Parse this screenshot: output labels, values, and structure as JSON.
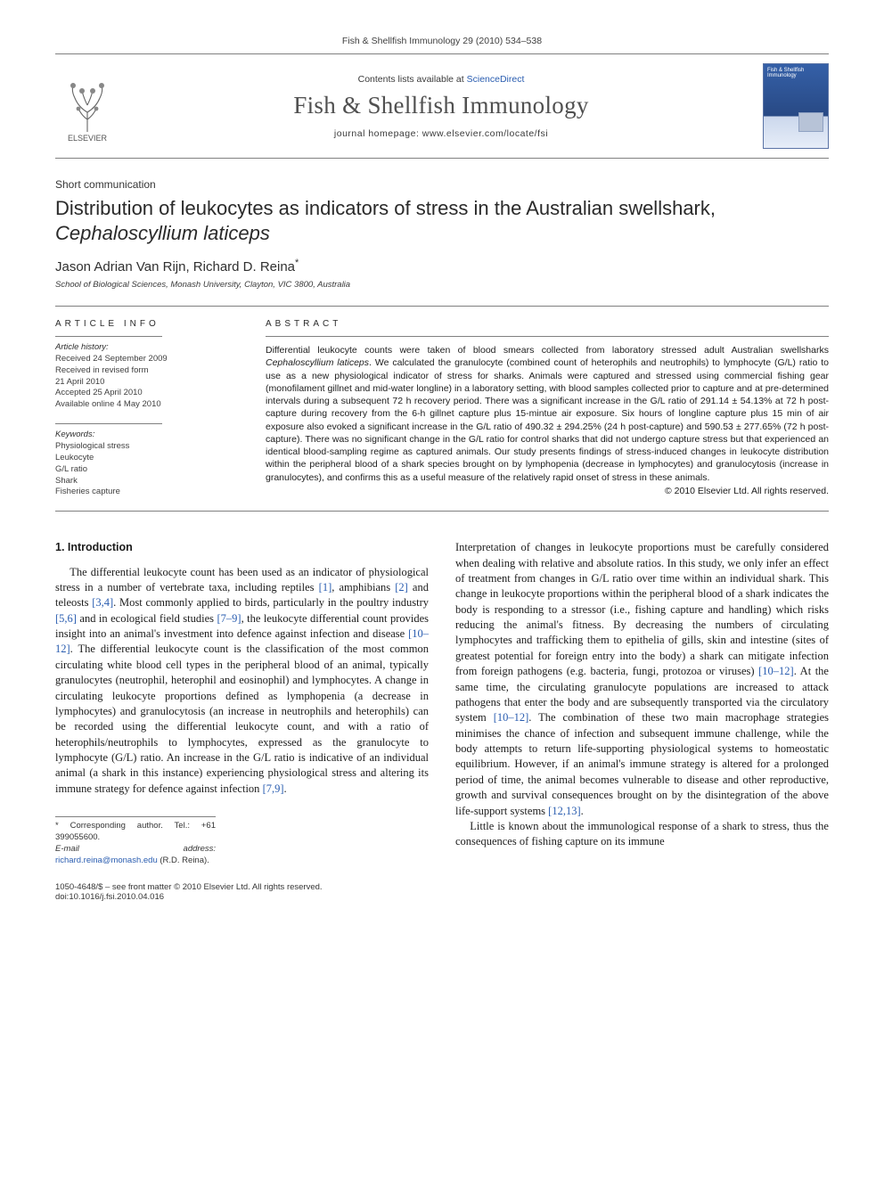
{
  "header": {
    "citation": "Fish & Shellfish Immunology 29 (2010) 534–538",
    "contents_prefix": "Contents lists available at",
    "contents_link": "ScienceDirect",
    "journal_title": "Fish & Shellfish Immunology",
    "homepage_prefix": "journal homepage:",
    "homepage_url": "www.elsevier.com/locate/fsi",
    "publisher_logo_label": "ELSEVIER",
    "cover_label": "Fish & Shellfish Immunology"
  },
  "article": {
    "type": "Short communication",
    "title_main": "Distribution of leukocytes as indicators of stress in the Australian swellshark, ",
    "title_species": "Cephaloscyllium laticeps",
    "authors": "Jason Adrian Van Rijn, Richard D. Reina",
    "corr_marker": "*",
    "affiliation": "School of Biological Sciences, Monash University, Clayton, VIC 3800, Australia"
  },
  "article_info": {
    "heading": "ARTICLE INFO",
    "history_head": "Article history:",
    "history": [
      "Received 24 September 2009",
      "Received in revised form",
      "21 April 2010",
      "Accepted 25 April 2010",
      "Available online 4 May 2010"
    ],
    "keywords_head": "Keywords:",
    "keywords": [
      "Physiological stress",
      "Leukocyte",
      "G/L ratio",
      "Shark",
      "Fisheries capture"
    ]
  },
  "abstract": {
    "heading": "ABSTRACT",
    "body": "Differential leukocyte counts were taken of blood smears collected from laboratory stressed adult Australian swellsharks Cephaloscyllium laticeps. We calculated the granulocyte (combined count of heterophils and neutrophils) to lymphocyte (G/L) ratio to use as a new physiological indicator of stress for sharks. Animals were captured and stressed using commercial fishing gear (monofilament gillnet and mid-water longline) in a laboratory setting, with blood samples collected prior to capture and at pre-determined intervals during a subsequent 72 h recovery period. There was a significant increase in the G/L ratio of 291.14 ± 54.13% at 72 h post-capture during recovery from the 6-h gillnet capture plus 15-mintue air exposure. Six hours of longline capture plus 15 min of air exposure also evoked a significant increase in the G/L ratio of 490.32 ± 294.25% (24 h post-capture) and 590.53 ± 277.65% (72 h post-capture). There was no significant change in the G/L ratio for control sharks that did not undergo capture stress but that experienced an identical blood-sampling regime as captured animals. Our study presents findings of stress-induced changes in leukocyte distribution within the peripheral blood of a shark species brought on by lymphopenia (decrease in lymphocytes) and granulocytosis (increase in granulocytes), and confirms this as a useful measure of the relatively rapid onset of stress in these animals.",
    "copyright": "© 2010 Elsevier Ltd. All rights reserved."
  },
  "body": {
    "section_heading": "1. Introduction",
    "left_col": "The differential leukocyte count has been used as an indicator of physiological stress in a number of vertebrate taxa, including reptiles [1], amphibians [2] and teleosts [3,4]. Most commonly applied to birds, particularly in the poultry industry [5,6] and in ecological field studies [7–9], the leukocyte differential count provides insight into an animal's investment into defence against infection and disease [10–12]. The differential leukocyte count is the classification of the most common circulating white blood cell types in the peripheral blood of an animal, typically granulocytes (neutrophil, heterophil and eosinophil) and lymphocytes. A change in circulating leukocyte proportions defined as lymphopenia (a decrease in lymphocytes) and granulocytosis (an increase in neutrophils and heterophils) can be recorded using the differential leukocyte count, and with a ratio of heterophils/neutrophils to lymphocytes, expressed as the granulocyte to lymphocyte (G/L) ratio. An increase in the G/L ratio is indicative of an individual animal (a shark in this instance) experiencing physiological stress and altering its immune strategy for defence against infection [7,9].",
    "right_col_p1": "Interpretation of changes in leukocyte proportions must be carefully considered when dealing with relative and absolute ratios. In this study, we only infer an effect of treatment from changes in G/L ratio over time within an individual shark. This change in leukocyte proportions within the peripheral blood of a shark indicates the body is responding to a stressor (i.e., fishing capture and handling) which risks reducing the animal's fitness. By decreasing the numbers of circulating lymphocytes and trafficking them to epithelia of gills, skin and intestine (sites of greatest potential for foreign entry into the body) a shark can mitigate infection from foreign pathogens (e.g. bacteria, fungi, protozoa or viruses) [10–12]. At the same time, the circulating granulocyte populations are increased to attack pathogens that enter the body and are subsequently transported via the circulatory system [10–12]. The combination of these two main macrophage strategies minimises the chance of infection and subsequent immune challenge, while the body attempts to return life-supporting physiological systems to homeostatic equilibrium. However, if an animal's immune strategy is altered for a prolonged period of time, the animal becomes vulnerable to disease and other reproductive, growth and survival consequences brought on by the disintegration of the above life-support systems [12,13].",
    "right_col_p2": "Little is known about the immunological response of a shark to stress, thus the consequences of fishing capture on its immune"
  },
  "footnotes": {
    "corr_label": "* Corresponding author. Tel.: +61 399055600.",
    "email_label": "E-mail address:",
    "email": "richard.reina@monash.edu",
    "email_owner": "(R.D. Reina)."
  },
  "footer": {
    "left_line1": "1050-4648/$ – see front matter © 2010 Elsevier Ltd. All rights reserved.",
    "left_line2": "doi:10.1016/j.fsi.2010.04.016"
  },
  "colors": {
    "link": "#2a5db0",
    "rule": "#808080",
    "text": "#1a1a1a",
    "muted": "#404040"
  }
}
